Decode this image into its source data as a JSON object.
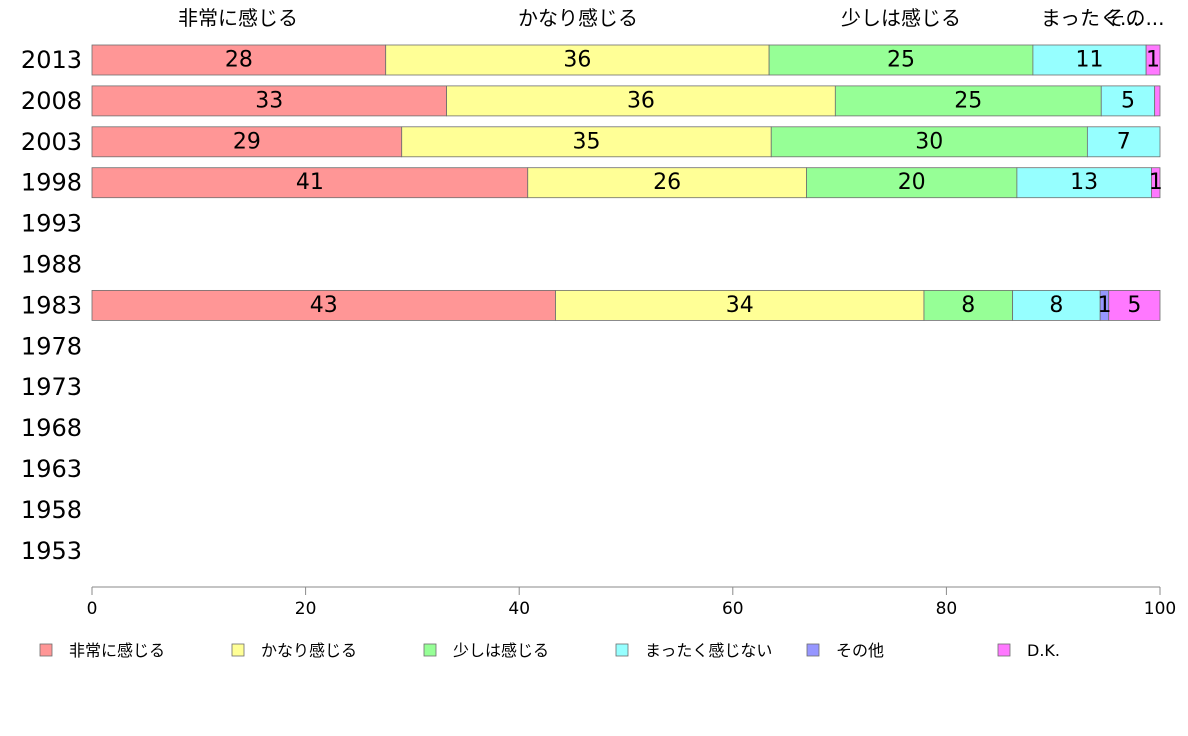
{
  "chart_data": {
    "type": "bar",
    "orientation": "horizontal",
    "stacked": true,
    "categories": [
      "2013",
      "2008",
      "2003",
      "1998",
      "1993",
      "1988",
      "1983",
      "1978",
      "1973",
      "1968",
      "1963",
      "1958",
      "1953"
    ],
    "series": [
      {
        "name": "非常に感じる",
        "color": "#ff9696",
        "values": [
          27.5,
          33.2,
          29.0,
          40.8,
          null,
          null,
          43.4,
          null,
          null,
          null,
          null,
          null,
          null
        ]
      },
      {
        "name": "かなり感じる",
        "color": "#ffff96",
        "values": [
          35.9,
          36.4,
          34.6,
          26.1,
          null,
          null,
          34.5,
          null,
          null,
          null,
          null,
          null,
          null
        ]
      },
      {
        "name": "少しは感じる",
        "color": "#96ff96",
        "values": [
          24.7,
          24.9,
          29.6,
          19.7,
          null,
          null,
          8.3,
          null,
          null,
          null,
          null,
          null,
          null
        ]
      },
      {
        "name": "まったく感じない",
        "color": "#96ffff",
        "values": [
          10.6,
          5.0,
          6.8,
          12.6,
          null,
          null,
          8.2,
          null,
          null,
          null,
          null,
          null,
          null
        ]
      },
      {
        "name": "その他",
        "color": "#9696ff",
        "values": [
          0,
          0,
          0,
          0,
          null,
          null,
          0.8,
          null,
          null,
          null,
          null,
          null,
          null
        ]
      },
      {
        "name": "D.K.",
        "color": "#ff78ff",
        "values": [
          1.3,
          0.5,
          0,
          0.8,
          null,
          null,
          4.8,
          null,
          null,
          null,
          null,
          null,
          null
        ]
      }
    ],
    "data_labels": [
      [
        "28",
        "36",
        "25",
        "11",
        "",
        "1"
      ],
      [
        "33",
        "36",
        "25",
        "5",
        "",
        ""
      ],
      [
        "29",
        "35",
        "30",
        "7",
        "",
        ""
      ],
      [
        "41",
        "26",
        "20",
        "13",
        "",
        "1"
      ],
      [
        "",
        "",
        "",
        "",
        "",
        ""
      ],
      [
        "",
        "",
        "",
        "",
        "",
        ""
      ],
      [
        "43",
        "34",
        "8",
        "8",
        "1",
        "5"
      ],
      [
        "",
        "",
        "",
        "",
        "",
        ""
      ],
      [
        "",
        "",
        "",
        "",
        "",
        ""
      ],
      [
        "",
        "",
        "",
        "",
        "",
        ""
      ],
      [
        "",
        "",
        "",
        "",
        "",
        ""
      ],
      [
        "",
        "",
        "",
        "",
        "",
        ""
      ],
      [
        "",
        "",
        "",
        "",
        "",
        ""
      ]
    ],
    "top_labels": [
      "非常に感じる",
      "かなり感じる",
      "少しは感じる",
      "まったく...",
      "その..."
    ],
    "xlim": [
      0,
      100
    ],
    "x_ticks": [
      "0",
      "20",
      "40",
      "60",
      "80",
      "100"
    ],
    "legend_position": "bottom",
    "grid": false,
    "title": "",
    "xlabel": "",
    "ylabel": ""
  }
}
